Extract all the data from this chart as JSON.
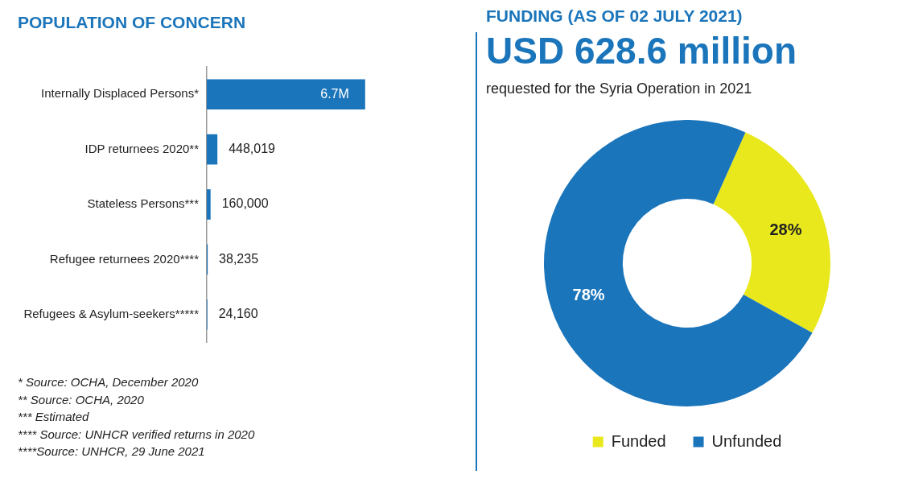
{
  "chart_data": [
    {
      "type": "bar",
      "orientation": "horizontal",
      "title": "POPULATION OF CONCERN",
      "categories": [
        "Internally Displaced Persons*",
        "IDP returnees 2020**",
        "Stateless Persons***",
        "Refugee returnees 2020****",
        "Refugees & Asylum-seekers*****"
      ],
      "values": [
        6700000,
        448019,
        160000,
        38235,
        24160
      ],
      "value_labels": [
        "6.7M",
        "448,019",
        "160,000",
        "38,235",
        "24,160"
      ],
      "color": "#1b75bb",
      "tick_labels": "y",
      "annotations": [
        "* Source: OCHA, December 2020",
        "** Source: OCHA, 2020",
        "*** Estimated",
        "**** Source: UNHCR verified returns in 2020",
        "****Source: UNHCR, 29 June 2021"
      ]
    },
    {
      "type": "donut",
      "title": "FUNDING (AS OF 02 JULY  2021)",
      "subtitle": "USD 628.6 million",
      "categories": [
        "Funded",
        "Unfunded"
      ],
      "values": [
        28,
        78
      ],
      "colors": [
        "#e8e81c",
        "#1b75bb"
      ],
      "value_labels": [
        "28%",
        "78%"
      ],
      "legend": "bottom",
      "annotations": [
        "requested for the Syria Operation in 2021"
      ]
    }
  ]
}
